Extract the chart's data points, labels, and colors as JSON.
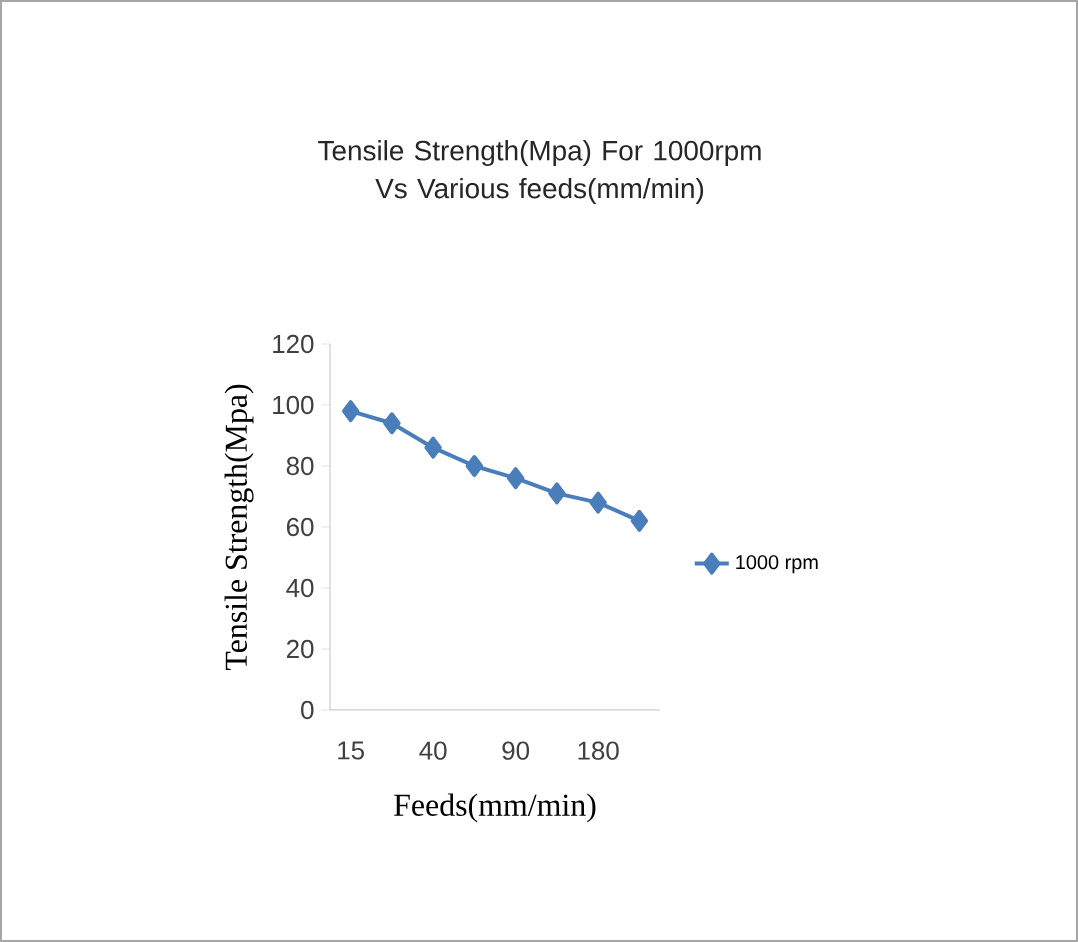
{
  "chart_data": {
    "type": "line",
    "title": "Tensile Strength(Mpa) For 1000rpm Vs Various feeds(mm/min)",
    "xlabel": "Feeds(mm/min)",
    "ylabel": "Tensile Strength(Mpa)",
    "categories": [
      "15",
      null,
      "40",
      null,
      "90",
      null,
      "180",
      null
    ],
    "series": [
      {
        "name": "1000 rpm",
        "color": "#4a7ebb",
        "values": [
          98,
          94,
          86,
          80,
          76,
          71,
          68,
          62
        ]
      }
    ],
    "ylim": [
      0,
      120
    ],
    "yticks": [
      0,
      20,
      40,
      60,
      80,
      100,
      120
    ],
    "grid": false,
    "legend": "right",
    "marker": "diamond",
    "line_style": "solid"
  }
}
